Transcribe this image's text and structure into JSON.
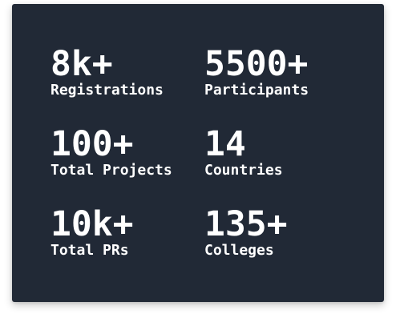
{
  "stats": [
    {
      "value": "8k+",
      "label": "Registrations"
    },
    {
      "value": "5500+",
      "label": "Participants"
    },
    {
      "value": "100+",
      "label": "Total Projects"
    },
    {
      "value": "14",
      "label": "Countries"
    },
    {
      "value": "10k+",
      "label": "Total PRs"
    },
    {
      "value": "135+",
      "label": "Colleges"
    }
  ],
  "colors": {
    "card_background": "#212936",
    "text": "#ffffff",
    "page_background": "#ffffff"
  }
}
